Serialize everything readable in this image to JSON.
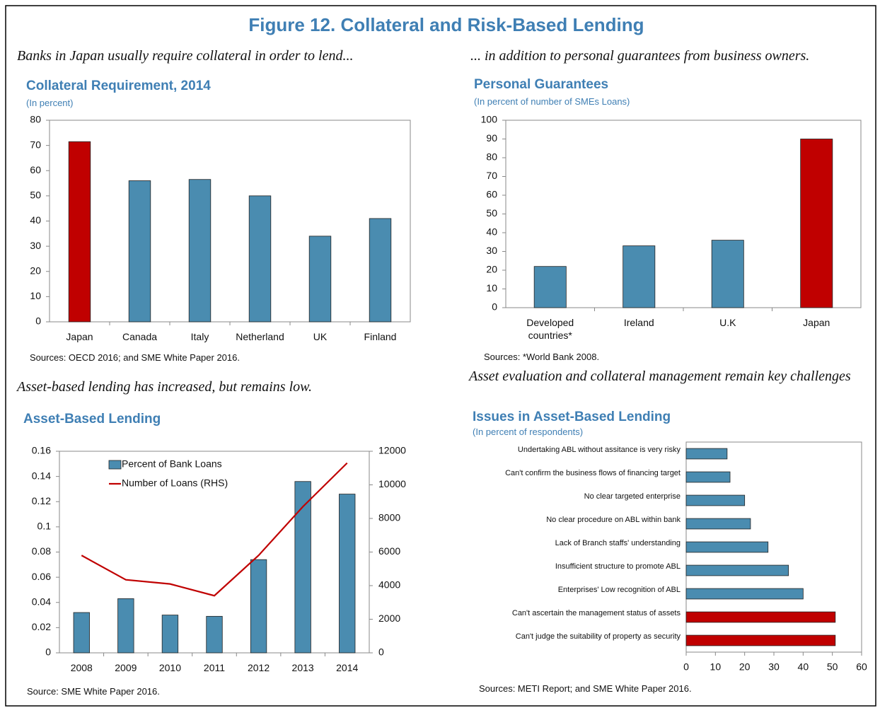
{
  "title": "Figure 12. Collateral and Risk-Based Lending",
  "chart_data": [
    {
      "type": "bar",
      "intro": "Banks in Japan usually require collateral in order to lend...",
      "title": "Collateral Requirement, 2014",
      "subtitle": "(In percent)",
      "source": "Sources: OECD 2016; and SME White Paper 2016.",
      "categories": [
        "Japan",
        "Canada",
        "Italy",
        "Netherland",
        "UK",
        "Finland"
      ],
      "series": [
        {
          "values": [
            71.5,
            56,
            56.5,
            50,
            34,
            41
          ],
          "colors": [
            "#c00000",
            "#4a8cb0",
            "#4a8cb0",
            "#4a8cb0",
            "#4a8cb0",
            "#4a8cb0"
          ]
        }
      ],
      "ylim": [
        0,
        80
      ],
      "yticks": [
        0,
        10,
        20,
        30,
        40,
        50,
        60,
        70,
        80
      ]
    },
    {
      "type": "bar",
      "intro": "... in addition to personal guarantees from business owners.",
      "title": "Personal Guarantees",
      "subtitle": "(In percent of number of SMEs Loans)",
      "source": "Sources: *World Bank 2008.",
      "categories": [
        "Developed countries*",
        "Ireland",
        "U.K",
        "Japan"
      ],
      "series": [
        {
          "values": [
            22,
            33,
            36,
            90
          ],
          "colors": [
            "#4a8cb0",
            "#4a8cb0",
            "#4a8cb0",
            "#c00000"
          ]
        }
      ],
      "ylim": [
        0,
        100
      ],
      "yticks": [
        0,
        10,
        20,
        30,
        40,
        50,
        60,
        70,
        80,
        90,
        100
      ]
    },
    {
      "type": "combo",
      "intro": "Asset-based lending has increased, but remains low.",
      "title": "Asset-Based Lending",
      "source": "Source: SME White Paper 2016.",
      "categories": [
        "2008",
        "2009",
        "2010",
        "2011",
        "2012",
        "2013",
        "2014"
      ],
      "series": [
        {
          "name": "Percent of Bank Loans",
          "type": "bar",
          "color": "#4a8cb0",
          "values": [
            0.032,
            0.043,
            0.03,
            0.029,
            0.074,
            0.136,
            0.126
          ]
        },
        {
          "name": "Number of Loans (RHS)",
          "type": "line",
          "axis": "y2",
          "color": "#c00000",
          "values": [
            5800,
            4350,
            4100,
            3400,
            5800,
            8700,
            11300
          ]
        }
      ],
      "ylim": [
        0,
        0.16
      ],
      "yticks": [
        0,
        0.02,
        0.04,
        0.06,
        0.08,
        0.1,
        0.12,
        0.14,
        0.16
      ],
      "y2lim": [
        0,
        12000
      ],
      "y2ticks": [
        0,
        2000,
        4000,
        6000,
        8000,
        10000,
        12000
      ],
      "legend": "upper left"
    },
    {
      "type": "barh",
      "intro": "Asset evaluation and collateral management remain key challenges",
      "title": "Issues in Asset-Based Lending",
      "subtitle": "(In percent of respondents)",
      "source": "Sources: METI Report; and SME White Paper 2016.",
      "categories": [
        "Undertaking ABL without assitance is very risky",
        "Can't confirm the business flows of financing target",
        "No clear targeted enterprise",
        "No clear procedure on ABL within bank",
        "Lack of Branch staffs' understanding",
        "Insufficient structure to promote ABL",
        "Enterprises' Low recognition of ABL",
        "Can't ascertain the management status of assets",
        "Can't judge the suitability of property as security"
      ],
      "series": [
        {
          "values": [
            14,
            15,
            20,
            22,
            28,
            35,
            40,
            51,
            51
          ],
          "colors": [
            "#4a8cb0",
            "#4a8cb0",
            "#4a8cb0",
            "#4a8cb0",
            "#4a8cb0",
            "#4a8cb0",
            "#4a8cb0",
            "#c00000",
            "#c00000"
          ]
        }
      ],
      "xlim": [
        0,
        60
      ],
      "xticks": [
        0,
        10,
        20,
        30,
        40,
        50,
        60
      ]
    }
  ]
}
